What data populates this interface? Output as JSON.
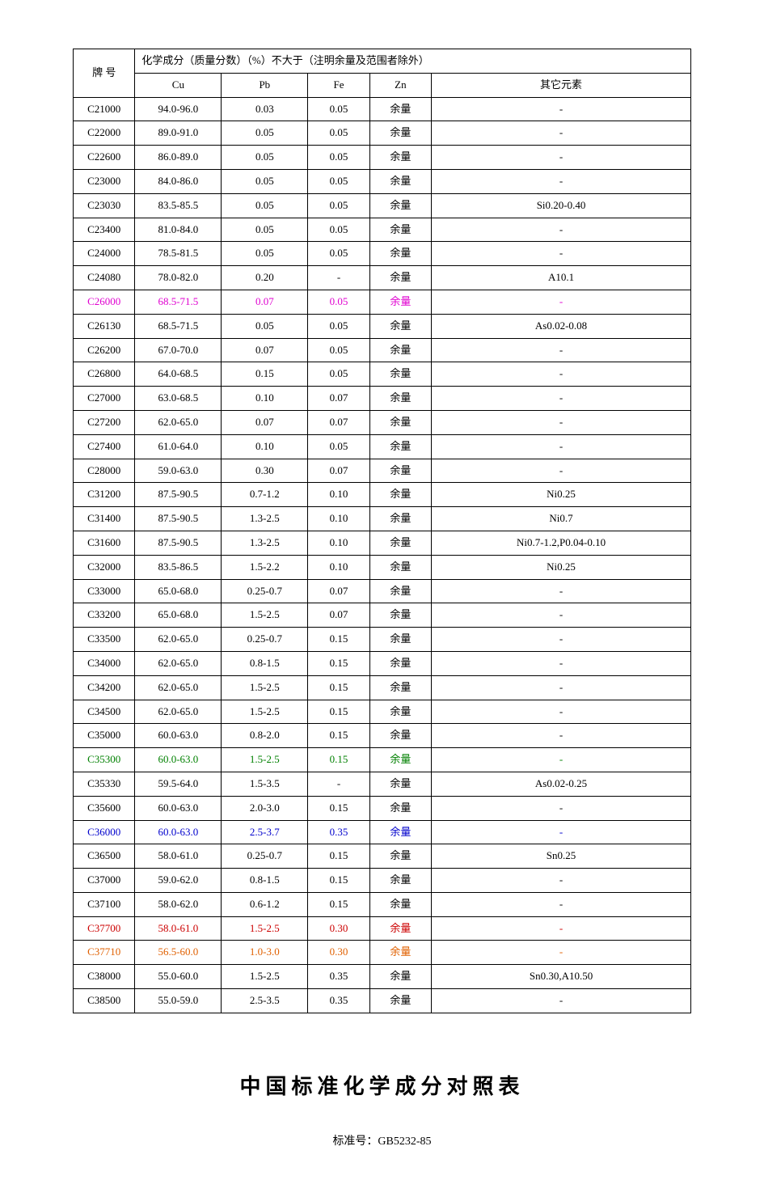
{
  "colors": {
    "default": "#000000",
    "magenta": "#e000d0",
    "green": "#008000",
    "blue": "#0000cc",
    "red": "#cc0000",
    "orange": "#e06000"
  },
  "header": {
    "grade": "牌 号",
    "title": "化学成分（质量分数）（%）不大于（注明余量及范围者除外）",
    "cu": "Cu",
    "pb": "Pb",
    "fe": "Fe",
    "zn": "Zn",
    "other": "其它元素"
  },
  "rows": [
    {
      "grade": "C21000",
      "cu": "94.0-96.0",
      "pb": "0.03",
      "fe": "0.05",
      "zn": "余量",
      "other": "-",
      "color": "default",
      "bold": false
    },
    {
      "grade": "C22000",
      "cu": "89.0-91.0",
      "pb": "0.05",
      "fe": "0.05",
      "zn": "余量",
      "other": "-",
      "color": "default",
      "bold": false
    },
    {
      "grade": "C22600",
      "cu": "86.0-89.0",
      "pb": "0.05",
      "fe": "0.05",
      "zn": "余量",
      "other": "-",
      "color": "default",
      "bold": false
    },
    {
      "grade": "C23000",
      "cu": "84.0-86.0",
      "pb": "0.05",
      "fe": "0.05",
      "zn": "余量",
      "other": "-",
      "color": "default",
      "bold": false
    },
    {
      "grade": "C23030",
      "cu": "83.5-85.5",
      "pb": "0.05",
      "fe": "0.05",
      "zn": "余量",
      "other": "Si0.20-0.40",
      "color": "default",
      "bold": false
    },
    {
      "grade": "C23400",
      "cu": "81.0-84.0",
      "pb": "0.05",
      "fe": "0.05",
      "zn": "余量",
      "other": "-",
      "color": "default",
      "bold": false
    },
    {
      "grade": "C24000",
      "cu": "78.5-81.5",
      "pb": "0.05",
      "fe": "0.05",
      "zn": "余量",
      "other": "-",
      "color": "default",
      "bold": false
    },
    {
      "grade": "C24080",
      "cu": "78.0-82.0",
      "pb": "0.20",
      "fe": "-",
      "zn": "余量",
      "other": "A10.1",
      "color": "default",
      "bold": false
    },
    {
      "grade": "C26000",
      "cu": "68.5-71.5",
      "pb": "0.07",
      "fe": "0.05",
      "zn": "余量",
      "other": "-",
      "color": "magenta",
      "bold": true
    },
    {
      "grade": "C26130",
      "cu": "68.5-71.5",
      "pb": "0.05",
      "fe": "0.05",
      "zn": "余量",
      "other": "As0.02-0.08",
      "color": "default",
      "bold": false
    },
    {
      "grade": "C26200",
      "cu": "67.0-70.0",
      "pb": "0.07",
      "fe": "0.05",
      "zn": "余量",
      "other": "-",
      "color": "default",
      "bold": false
    },
    {
      "grade": "C26800",
      "cu": "64.0-68.5",
      "pb": "0.15",
      "fe": "0.05",
      "zn": "余量",
      "other": "-",
      "color": "default",
      "bold": false
    },
    {
      "grade": "C27000",
      "cu": "63.0-68.5",
      "pb": "0.10",
      "fe": "0.07",
      "zn": "余量",
      "other": "-",
      "color": "default",
      "bold": false
    },
    {
      "grade": "C27200",
      "cu": "62.0-65.0",
      "pb": "0.07",
      "fe": "0.07",
      "zn": "余量",
      "other": "-",
      "color": "default",
      "bold": false
    },
    {
      "grade": "C27400",
      "cu": "61.0-64.0",
      "pb": "0.10",
      "fe": "0.05",
      "zn": "余量",
      "other": "-",
      "color": "default",
      "bold": false
    },
    {
      "grade": "C28000",
      "cu": "59.0-63.0",
      "pb": "0.30",
      "fe": "0.07",
      "zn": "余量",
      "other": "-",
      "color": "default",
      "bold": false
    },
    {
      "grade": "C31200",
      "cu": "87.5-90.5",
      "pb": "0.7-1.2",
      "fe": "0.10",
      "zn": "余量",
      "other": "Ni0.25",
      "color": "default",
      "bold": false
    },
    {
      "grade": "C31400",
      "cu": "87.5-90.5",
      "pb": "1.3-2.5",
      "fe": "0.10",
      "zn": "余量",
      "other": "Ni0.7",
      "color": "default",
      "bold": false
    },
    {
      "grade": "C31600",
      "cu": "87.5-90.5",
      "pb": "1.3-2.5",
      "fe": "0.10",
      "zn": "余量",
      "other": "Ni0.7-1.2,P0.04-0.10",
      "color": "default",
      "bold": false
    },
    {
      "grade": "C32000",
      "cu": "83.5-86.5",
      "pb": "1.5-2.2",
      "fe": "0.10",
      "zn": "余量",
      "other": "Ni0.25",
      "color": "default",
      "bold": false
    },
    {
      "grade": "C33000",
      "cu": "65.0-68.0",
      "pb": "0.25-0.7",
      "fe": "0.07",
      "zn": "余量",
      "other": "-",
      "color": "default",
      "bold": false
    },
    {
      "grade": "C33200",
      "cu": "65.0-68.0",
      "pb": "1.5-2.5",
      "fe": "0.07",
      "zn": "余量",
      "other": "-",
      "color": "default",
      "bold": false
    },
    {
      "grade": "C33500",
      "cu": "62.0-65.0",
      "pb": "0.25-0.7",
      "fe": "0.15",
      "zn": "余量",
      "other": "-",
      "color": "default",
      "bold": false
    },
    {
      "grade": "C34000",
      "cu": "62.0-65.0",
      "pb": "0.8-1.5",
      "fe": "0.15",
      "zn": "余量",
      "other": "-",
      "color": "default",
      "bold": false
    },
    {
      "grade": "C34200",
      "cu": "62.0-65.0",
      "pb": "1.5-2.5",
      "fe": "0.15",
      "zn": "余量",
      "other": "-",
      "color": "default",
      "bold": false
    },
    {
      "grade": "C34500",
      "cu": "62.0-65.0",
      "pb": "1.5-2.5",
      "fe": "0.15",
      "zn": "余量",
      "other": "-",
      "color": "default",
      "bold": false
    },
    {
      "grade": "C35000",
      "cu": "60.0-63.0",
      "pb": "0.8-2.0",
      "fe": "0.15",
      "zn": "余量",
      "other": "-",
      "color": "default",
      "bold": false
    },
    {
      "grade": "C35300",
      "cu": "60.0-63.0",
      "pb": "1.5-2.5",
      "fe": "0.15",
      "zn": "余量",
      "other": "-",
      "color": "green",
      "bold": true
    },
    {
      "grade": "C35330",
      "cu": "59.5-64.0",
      "pb": "1.5-3.5",
      "fe": "-",
      "zn": "余量",
      "other": "As0.02-0.25",
      "color": "default",
      "bold": false
    },
    {
      "grade": "C35600",
      "cu": "60.0-63.0",
      "pb": "2.0-3.0",
      "fe": "0.15",
      "zn": "余量",
      "other": "-",
      "color": "default",
      "bold": false
    },
    {
      "grade": "C36000",
      "cu": "60.0-63.0",
      "pb": "2.5-3.7",
      "fe": "0.35",
      "zn": "余量",
      "other": "-",
      "color": "blue",
      "bold": true
    },
    {
      "grade": "C36500",
      "cu": "58.0-61.0",
      "pb": "0.25-0.7",
      "fe": "0.15",
      "zn": "余量",
      "other": "Sn0.25",
      "color": "default",
      "bold": false
    },
    {
      "grade": "C37000",
      "cu": "59.0-62.0",
      "pb": "0.8-1.5",
      "fe": "0.15",
      "zn": "余量",
      "other": "-",
      "color": "default",
      "bold": false
    },
    {
      "grade": "C37100",
      "cu": "58.0-62.0",
      "pb": "0.6-1.2",
      "fe": "0.15",
      "zn": "余量",
      "other": "-",
      "color": "default",
      "bold": false
    },
    {
      "grade": "C37700",
      "cu": "58.0-61.0",
      "pb": "1.5-2.5",
      "fe": "0.30",
      "zn": "余量",
      "other": "-",
      "color": "red",
      "bold": true
    },
    {
      "grade": "C37710",
      "cu": "56.5-60.0",
      "pb": "1.0-3.0",
      "fe": "0.30",
      "zn": "余量",
      "other": "-",
      "color": "orange",
      "bold": true
    },
    {
      "grade": "C38000",
      "cu": "55.0-60.0",
      "pb": "1.5-2.5",
      "fe": "0.35",
      "zn": "余量",
      "other": "Sn0.30,A10.50",
      "color": "default",
      "bold": false
    },
    {
      "grade": "C38500",
      "cu": "55.0-59.0",
      "pb": "2.5-3.5",
      "fe": "0.35",
      "zn": "余量",
      "other": "-",
      "color": "default",
      "bold": false
    }
  ],
  "footer": {
    "title": "中国标准化学成分对照表",
    "sub": "标准号：GB5232-85"
  }
}
